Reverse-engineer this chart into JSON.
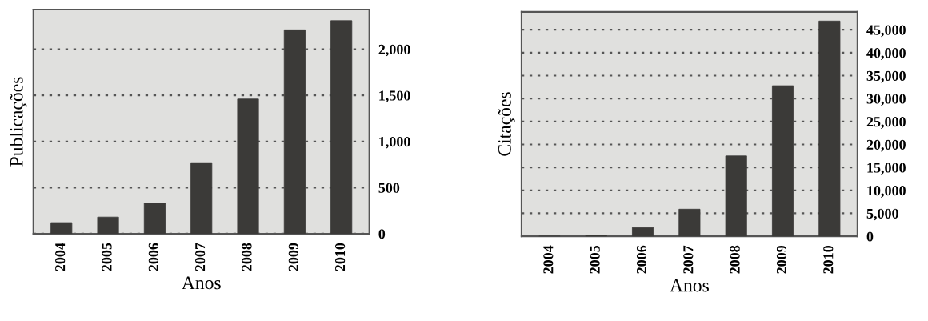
{
  "chart_data": [
    {
      "type": "bar",
      "xlabel": "Anos",
      "ylabel": "Publicações",
      "categories": [
        "2004",
        "2005",
        "2006",
        "2007",
        "2008",
        "2009",
        "2010"
      ],
      "values": [
        120,
        180,
        330,
        770,
        1460,
        2210,
        2310
      ],
      "color": "#3b3a38",
      "ylim": [
        0,
        2430
      ],
      "yticks": [
        0,
        500,
        {
          "value": 1000,
          "label": "1,000"
        },
        {
          "value": 1500,
          "label": "1,500"
        },
        {
          "value": 2000,
          "label": "2,000"
        }
      ],
      "grid": "y",
      "legend": false
    },
    {
      "type": "bar",
      "xlabel": "Anos",
      "ylabel": "Citações",
      "categories": [
        "2004",
        "2005",
        "2006",
        "2007",
        "2008",
        "2009",
        "2010"
      ],
      "values": [
        0,
        200,
        1900,
        5900,
        17500,
        32800,
        46900
      ],
      "color": "#3b3a38",
      "ylim": [
        0,
        48900
      ],
      "yticks": [
        0,
        {
          "value": 5000,
          "label": "5,000"
        },
        {
          "value": 10000,
          "label": "10,000"
        },
        {
          "value": 15000,
          "label": "15,000"
        },
        {
          "value": 20000,
          "label": "20,000"
        },
        {
          "value": 25000,
          "label": "25,000"
        },
        {
          "value": 30000,
          "label": "30,000"
        },
        {
          "value": 35000,
          "label": "35,000"
        },
        {
          "value": 40000,
          "label": "40,000"
        },
        {
          "value": 45000,
          "label": "45,000"
        }
      ],
      "grid": "y",
      "legend": false
    }
  ]
}
